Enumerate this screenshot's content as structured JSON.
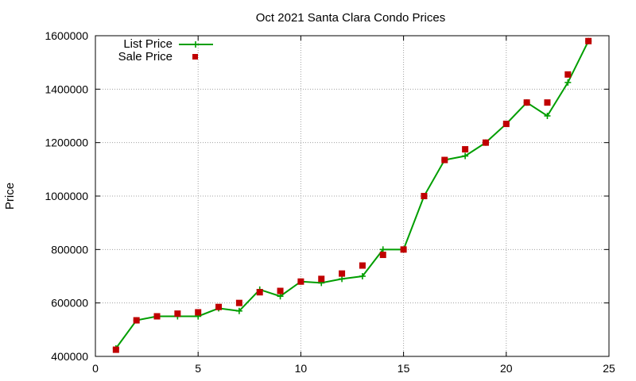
{
  "chart_data": {
    "type": "line",
    "title": "Oct 2021 Santa Clara Condo Prices",
    "xlabel": "",
    "ylabel": "Price",
    "xlim": [
      0,
      25
    ],
    "ylim": [
      400000,
      1600000
    ],
    "x_ticks": [
      0,
      5,
      10,
      15,
      20,
      25
    ],
    "y_ticks": [
      400000,
      600000,
      800000,
      1000000,
      1200000,
      1400000,
      1600000
    ],
    "x_tick_labels": [
      "0",
      "5",
      "10",
      "15",
      "20",
      "25"
    ],
    "y_tick_labels": [
      "400000",
      "600000",
      "800000",
      "1000000",
      "1200000",
      "1400000",
      "1600000"
    ],
    "grid": true,
    "legend_position": "top-left",
    "x": [
      1,
      2,
      3,
      4,
      5,
      6,
      7,
      8,
      9,
      10,
      11,
      12,
      13,
      14,
      15,
      16,
      17,
      18,
      19,
      20,
      21,
      22,
      23,
      24
    ],
    "series": [
      {
        "name": "List Price",
        "style": "line with plus markers",
        "color": "#009e00",
        "values": [
          430000,
          535000,
          550000,
          550000,
          550000,
          580000,
          570000,
          650000,
          625000,
          680000,
          675000,
          690000,
          700000,
          800000,
          800000,
          1000000,
          1135000,
          1150000,
          1200000,
          1270000,
          1350000,
          1300000,
          1425000,
          1580000
        ]
      },
      {
        "name": "Sale Price",
        "style": "square markers",
        "color": "#c00000",
        "values": [
          425000,
          535000,
          550000,
          560000,
          565000,
          585000,
          600000,
          640000,
          645000,
          680000,
          690000,
          710000,
          740000,
          780000,
          800000,
          1000000,
          1135000,
          1175000,
          1200000,
          1270000,
          1350000,
          1350000,
          1455000,
          1580000
        ]
      }
    ]
  }
}
